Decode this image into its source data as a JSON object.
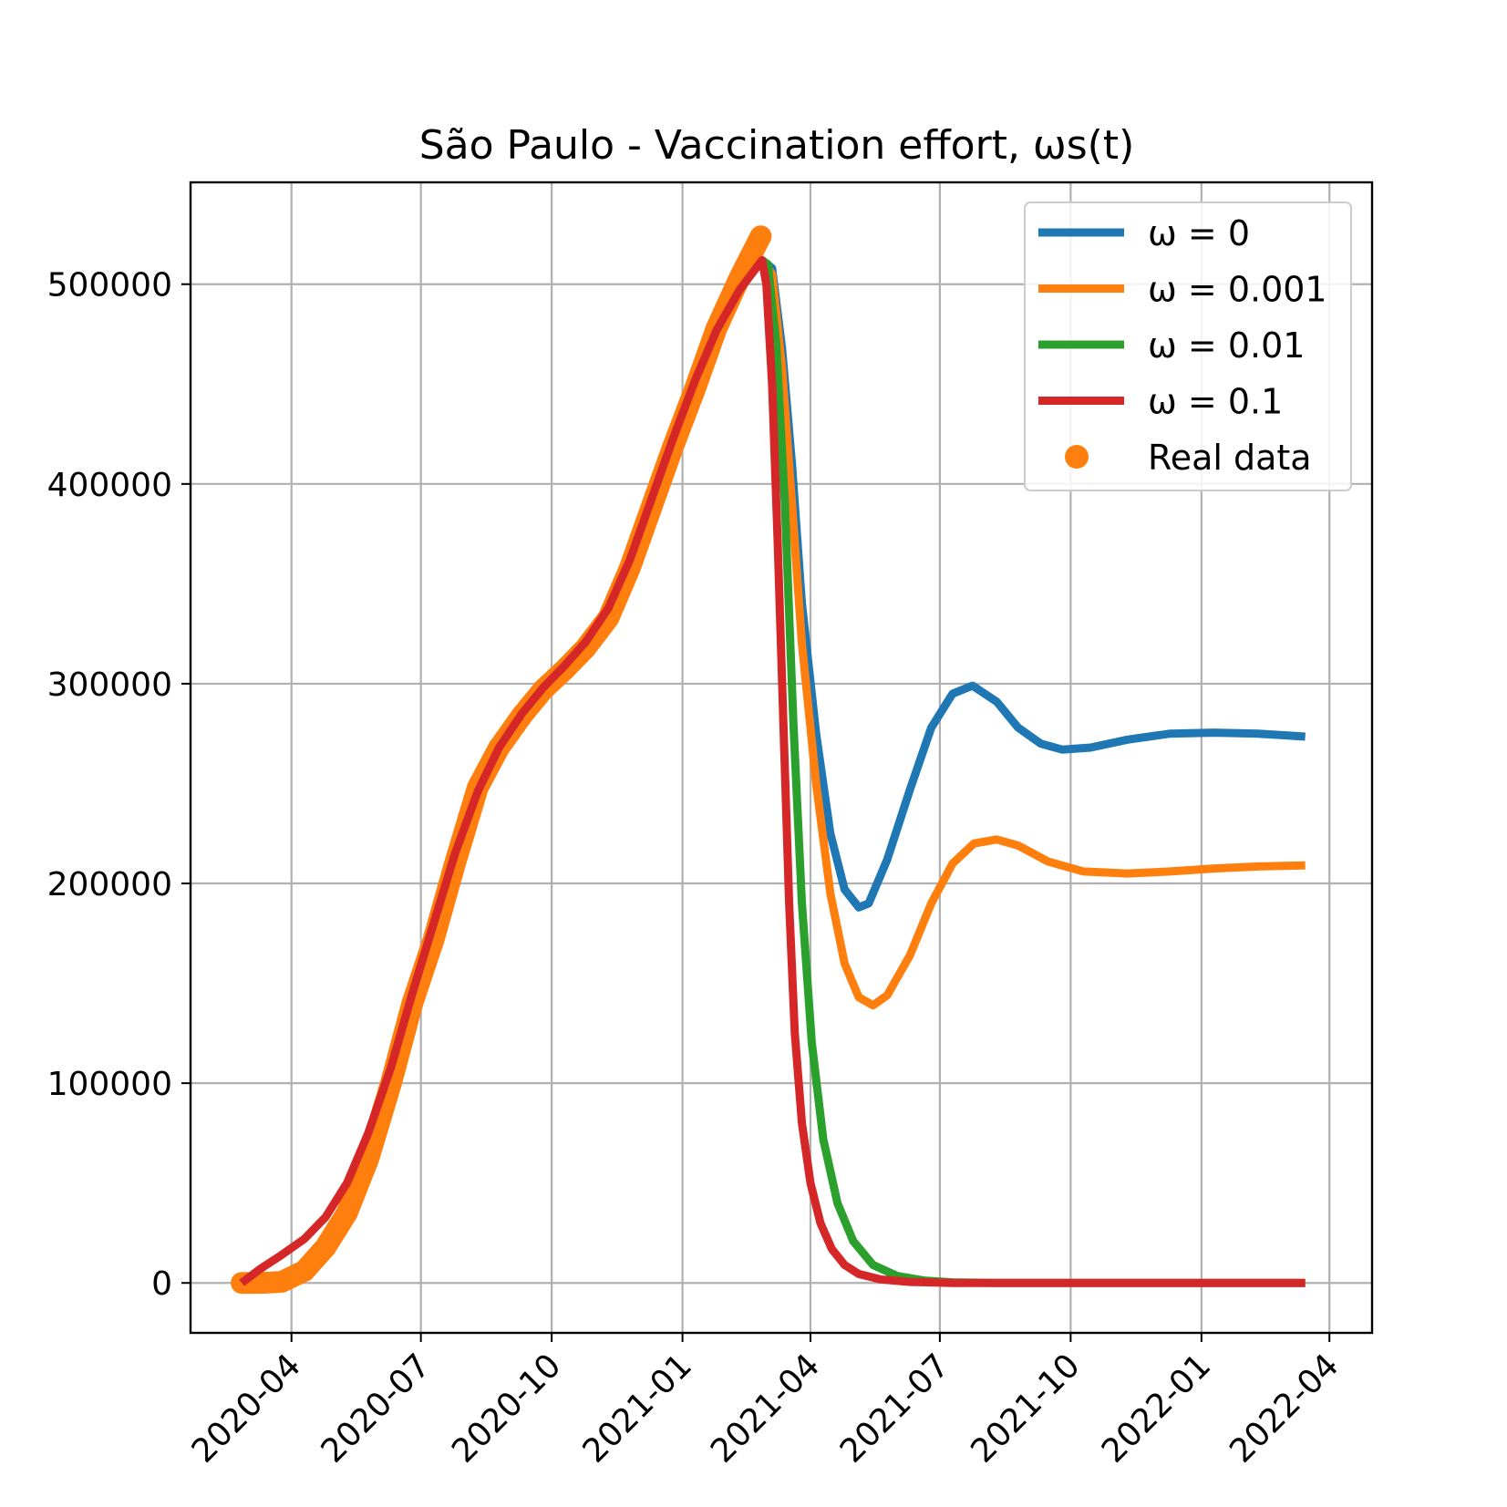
{
  "chart_data": {
    "type": "line",
    "title": "São Paulo - Vaccination effort, ωs(t)",
    "xlabel": "",
    "ylabel": "",
    "grid": true,
    "legend_position": "top-right",
    "xlim": [
      "2020-01-21",
      "2022-05-01"
    ],
    "ylim": [
      -25000,
      551000
    ],
    "x_ticks": [
      "2020-04",
      "2020-07",
      "2020-10",
      "2021-01",
      "2021-04",
      "2021-07",
      "2021-10",
      "2022-01",
      "2022-04"
    ],
    "y_ticks": [
      0,
      100000,
      200000,
      300000,
      400000,
      500000
    ],
    "y_tick_labels": [
      "0",
      "100000",
      "200000",
      "300000",
      "400000",
      "500000"
    ],
    "series": [
      {
        "name": "ω = 0",
        "legend_label": "ω = 0",
        "color": "#1f77b4",
        "points": [
          [
            "2021-02-26",
            512000
          ],
          [
            "2021-03-05",
            508000
          ],
          [
            "2021-03-12",
            468000
          ],
          [
            "2021-03-19",
            410000
          ],
          [
            "2021-03-26",
            340000
          ],
          [
            "2021-04-05",
            275000
          ],
          [
            "2021-04-15",
            225000
          ],
          [
            "2021-04-25",
            197000
          ],
          [
            "2021-05-05",
            188000
          ],
          [
            "2021-05-12",
            190000
          ],
          [
            "2021-05-25",
            212000
          ],
          [
            "2021-06-10",
            247000
          ],
          [
            "2021-06-25",
            278000
          ],
          [
            "2021-07-10",
            295000
          ],
          [
            "2021-07-24",
            299000
          ],
          [
            "2021-08-10",
            291000
          ],
          [
            "2021-08-25",
            278000
          ],
          [
            "2021-09-10",
            270000
          ],
          [
            "2021-09-25",
            267000
          ],
          [
            "2021-10-15",
            268000
          ],
          [
            "2021-11-10",
            272000
          ],
          [
            "2021-12-10",
            275000
          ],
          [
            "2022-01-10",
            275500
          ],
          [
            "2022-02-10",
            275000
          ],
          [
            "2022-03-15",
            273500
          ]
        ]
      },
      {
        "name": "ω = 0.001",
        "legend_label": "ω = 0.001",
        "color": "#ff7f0e",
        "points": [
          [
            "2021-02-26",
            512000
          ],
          [
            "2021-03-05",
            505000
          ],
          [
            "2021-03-12",
            458000
          ],
          [
            "2021-03-19",
            390000
          ],
          [
            "2021-03-26",
            320000
          ],
          [
            "2021-04-05",
            250000
          ],
          [
            "2021-04-15",
            195000
          ],
          [
            "2021-04-25",
            160000
          ],
          [
            "2021-05-05",
            143000
          ],
          [
            "2021-05-15",
            139000
          ],
          [
            "2021-05-25",
            144000
          ],
          [
            "2021-06-10",
            164000
          ],
          [
            "2021-06-25",
            190000
          ],
          [
            "2021-07-10",
            210000
          ],
          [
            "2021-07-25",
            220000
          ],
          [
            "2021-08-10",
            222000
          ],
          [
            "2021-08-25",
            219000
          ],
          [
            "2021-09-15",
            211000
          ],
          [
            "2021-10-10",
            206000
          ],
          [
            "2021-11-10",
            205000
          ],
          [
            "2021-12-10",
            206000
          ],
          [
            "2022-01-10",
            207500
          ],
          [
            "2022-02-10",
            208500
          ],
          [
            "2022-03-15",
            209000
          ]
        ]
      },
      {
        "name": "ω = 0.01",
        "legend_label": "ω = 0.01",
        "color": "#2ca02c",
        "points": [
          [
            "2021-02-26",
            512000
          ],
          [
            "2021-03-02",
            510000
          ],
          [
            "2021-03-08",
            470000
          ],
          [
            "2021-03-14",
            390000
          ],
          [
            "2021-03-20",
            280000
          ],
          [
            "2021-03-26",
            190000
          ],
          [
            "2021-04-02",
            120000
          ],
          [
            "2021-04-10",
            72000
          ],
          [
            "2021-04-20",
            40000
          ],
          [
            "2021-05-01",
            21000
          ],
          [
            "2021-05-15",
            9000
          ],
          [
            "2021-06-01",
            3500
          ],
          [
            "2021-06-20",
            1200
          ],
          [
            "2021-07-10",
            300
          ],
          [
            "2021-08-10",
            0
          ],
          [
            "2022-03-15",
            0
          ]
        ]
      },
      {
        "name": "ω = 0.1",
        "legend_label": "ω = 0.1",
        "color": "#d62728",
        "points": [
          [
            "2020-02-26",
            0
          ],
          [
            "2020-03-10",
            7000
          ],
          [
            "2020-03-25",
            14000
          ],
          [
            "2020-04-10",
            22000
          ],
          [
            "2020-04-25",
            33000
          ],
          [
            "2020-05-10",
            50000
          ],
          [
            "2020-05-25",
            75000
          ],
          [
            "2020-06-10",
            108000
          ],
          [
            "2020-06-25",
            145000
          ],
          [
            "2020-07-10",
            180000
          ],
          [
            "2020-07-25",
            215000
          ],
          [
            "2020-08-10",
            246000
          ],
          [
            "2020-08-25",
            268000
          ],
          [
            "2020-09-10",
            285000
          ],
          [
            "2020-09-25",
            298000
          ],
          [
            "2020-10-10",
            309000
          ],
          [
            "2020-10-25",
            321000
          ],
          [
            "2020-11-10",
            338000
          ],
          [
            "2020-11-25",
            362000
          ],
          [
            "2020-12-10",
            392000
          ],
          [
            "2020-12-25",
            422000
          ],
          [
            "2021-01-10",
            452000
          ],
          [
            "2021-01-25",
            477000
          ],
          [
            "2021-02-10",
            497000
          ],
          [
            "2021-02-26",
            512000
          ],
          [
            "2021-03-01",
            500000
          ],
          [
            "2021-03-05",
            450000
          ],
          [
            "2021-03-09",
            370000
          ],
          [
            "2021-03-13",
            280000
          ],
          [
            "2021-03-17",
            190000
          ],
          [
            "2021-03-21",
            125000
          ],
          [
            "2021-03-26",
            80000
          ],
          [
            "2021-04-01",
            50000
          ],
          [
            "2021-04-08",
            30000
          ],
          [
            "2021-04-16",
            17000
          ],
          [
            "2021-04-25",
            9000
          ],
          [
            "2021-05-05",
            4500
          ],
          [
            "2021-05-20",
            1800
          ],
          [
            "2021-06-10",
            500
          ],
          [
            "2021-07-10",
            0
          ],
          [
            "2022-03-15",
            0
          ]
        ]
      },
      {
        "name": "Real data",
        "legend_label": "Real data",
        "color": "#ff7f0e",
        "marker": "circle",
        "points": [
          [
            "2020-02-26",
            0
          ],
          [
            "2020-03-10",
            0
          ],
          [
            "2020-03-25",
            500
          ],
          [
            "2020-04-10",
            6000
          ],
          [
            "2020-04-25",
            18000
          ],
          [
            "2020-05-10",
            35000
          ],
          [
            "2020-05-25",
            62000
          ],
          [
            "2020-06-10",
            100000
          ],
          [
            "2020-06-25",
            140000
          ],
          [
            "2020-07-10",
            172000
          ],
          [
            "2020-07-25",
            210000
          ],
          [
            "2020-08-10",
            248000
          ],
          [
            "2020-08-25",
            268000
          ],
          [
            "2020-09-10",
            284000
          ],
          [
            "2020-09-25",
            297000
          ],
          [
            "2020-10-10",
            307000
          ],
          [
            "2020-10-25",
            318000
          ],
          [
            "2020-11-10",
            333000
          ],
          [
            "2020-11-25",
            358000
          ],
          [
            "2020-12-10",
            388000
          ],
          [
            "2020-12-25",
            418000
          ],
          [
            "2021-01-10",
            448000
          ],
          [
            "2021-01-25",
            478000
          ],
          [
            "2021-02-10",
            503000
          ],
          [
            "2021-02-25",
            524000
          ]
        ]
      }
    ]
  }
}
